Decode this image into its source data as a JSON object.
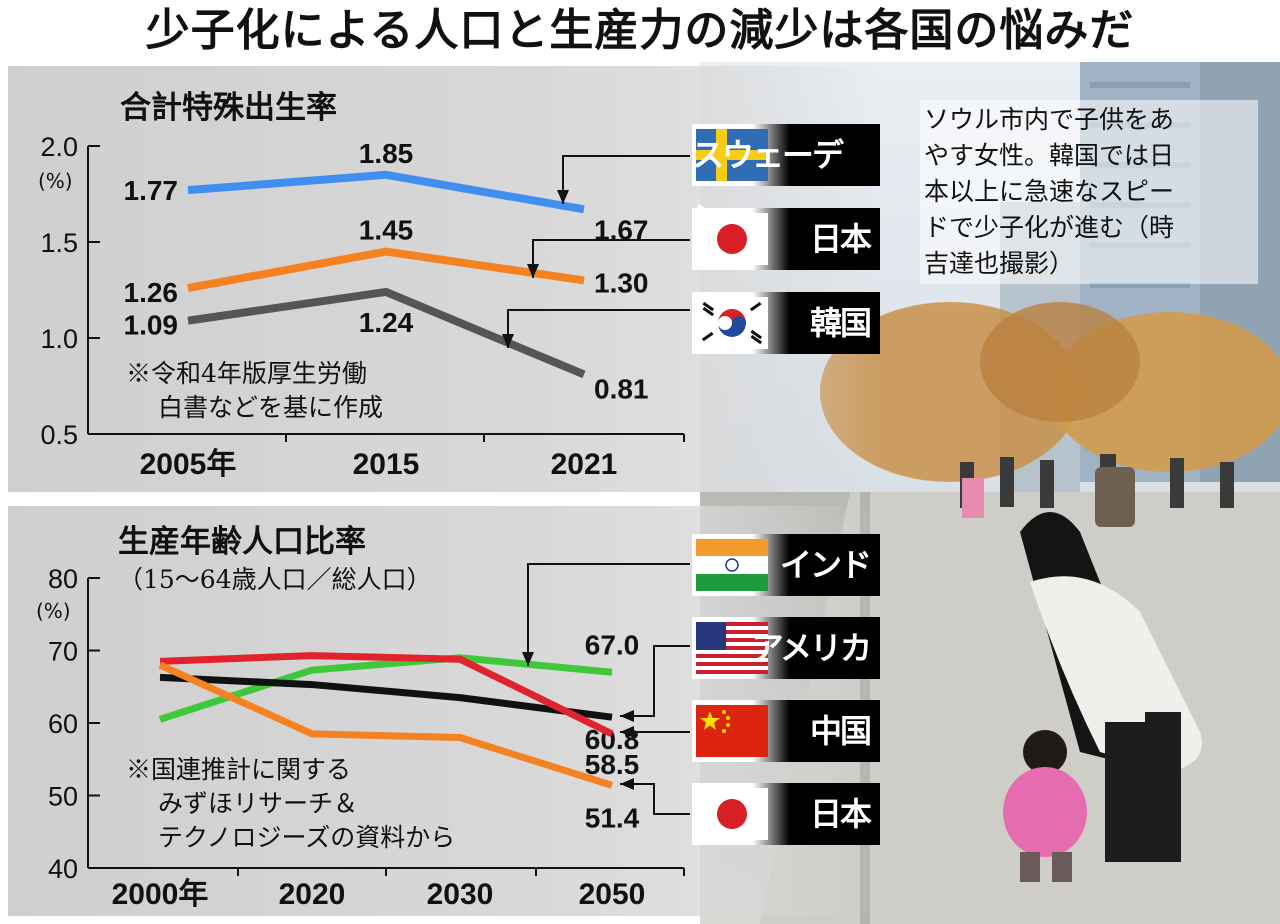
{
  "headline": "少子化による人口と生産力の減少は各国の悩みだ",
  "caption_lines": [
    "ソウル市内で子供をあ",
    "やす女性。韓国では日",
    "本以上に急速なスピー",
    "ドで少子化が進む（時",
    "吉達也撮影）"
  ],
  "legend_top": [
    {
      "label": "スウェーデン",
      "flag": "sweden-flag"
    },
    {
      "label": "日本",
      "flag": "japan-flag"
    },
    {
      "label": "韓国",
      "flag": "korea-flag"
    }
  ],
  "legend_bottom": [
    {
      "label": "インド",
      "flag": "india-flag"
    },
    {
      "label": "アメリカ",
      "flag": "usa-flag"
    },
    {
      "label": "中国",
      "flag": "china-flag"
    },
    {
      "label": "日本",
      "flag": "japan-flag"
    }
  ],
  "chart_data": [
    {
      "type": "line",
      "title": "合計特殊出生率",
      "unit": "(%)",
      "note": [
        "※令和4年版厚生労働",
        "白書などを基に作成"
      ],
      "categories": [
        "2005年",
        "2015",
        "2021"
      ],
      "ylim": [
        0.5,
        2.0
      ],
      "yticks": [
        "0.5",
        "1.0",
        "1.5",
        "2.0"
      ],
      "series": [
        {
          "name": "スウェーデン",
          "color": "#3f8ef0",
          "values": [
            1.77,
            1.85,
            1.67
          ],
          "labels": [
            "1.77",
            "1.85",
            "1.67"
          ]
        },
        {
          "name": "日本",
          "color": "#f58220",
          "values": [
            1.26,
            1.45,
            1.3
          ],
          "labels": [
            "1.26",
            "1.45",
            "1.30"
          ]
        },
        {
          "name": "韓国",
          "color": "#555555",
          "values": [
            1.09,
            1.24,
            0.81
          ],
          "labels": [
            "1.09",
            "1.24",
            "0.81"
          ]
        }
      ]
    },
    {
      "type": "line",
      "title": "生産年齢人口比率",
      "subtitle": "（15〜64歳人口／総人口）",
      "unit": "(%)",
      "note": [
        "※国連推計に関する",
        "みずほリサーチ＆",
        "テクノロジーズの資料から"
      ],
      "categories": [
        "2000年",
        "2020",
        "2030",
        "2050"
      ],
      "ylim": [
        40,
        80
      ],
      "yticks": [
        "40",
        "50",
        "60",
        "70",
        "80"
      ],
      "series": [
        {
          "name": "インド",
          "color": "#3fc93a",
          "values": [
            60.5,
            67.3,
            69.0,
            67.0
          ],
          "end_label": "67.0"
        },
        {
          "name": "アメリカ",
          "color": "#111111",
          "values": [
            66.3,
            65.3,
            63.5,
            60.8
          ],
          "end_label": "60.8"
        },
        {
          "name": "中国",
          "color": "#e0232d",
          "values": [
            68.5,
            69.3,
            68.8,
            58.5
          ],
          "end_label": "58.5"
        },
        {
          "name": "日本",
          "color": "#f58220",
          "values": [
            68.0,
            58.5,
            58.0,
            51.4
          ],
          "end_label": "51.4"
        }
      ]
    }
  ]
}
